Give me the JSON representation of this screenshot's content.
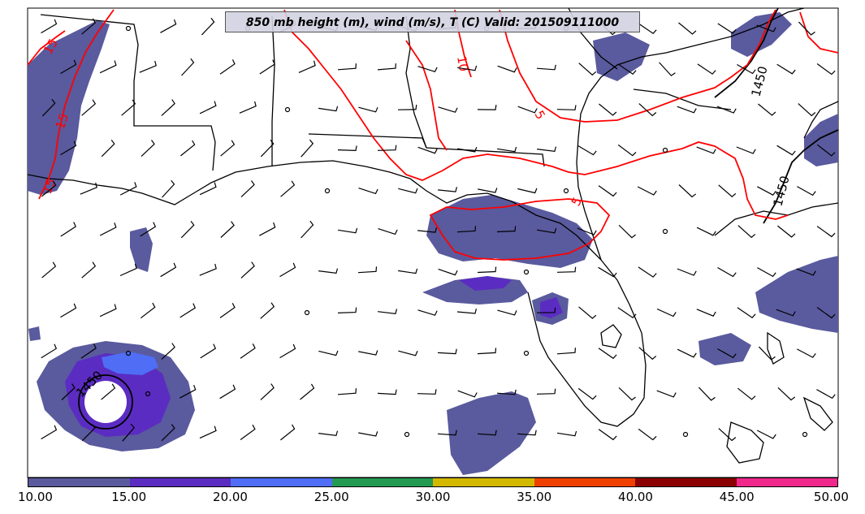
{
  "title": "850 mb height (m), wind (m/s), T (C) Valid: 201509111000",
  "colorbar": {
    "colors": [
      "#5a5a9e",
      "#5b2cc2",
      "#4f6df5",
      "#239a52",
      "#d3b800",
      "#f04000",
      "#8b0000",
      "#f0288c"
    ],
    "tick_labels": [
      "10.00",
      "15.00",
      "20.00",
      "25.00",
      "30.00",
      "35.00",
      "40.00",
      "45.00",
      "50.00"
    ]
  },
  "contour_labels": {
    "temperature": [
      "15",
      "15",
      "15",
      "10",
      "5",
      "5"
    ],
    "height": [
      "1450",
      "1450",
      "1450"
    ]
  },
  "colors": {
    "temperature_contour": "#ff0000",
    "height_contour": "#000000",
    "coastline": "#000000",
    "shade_base": "#5a5a9e"
  }
}
